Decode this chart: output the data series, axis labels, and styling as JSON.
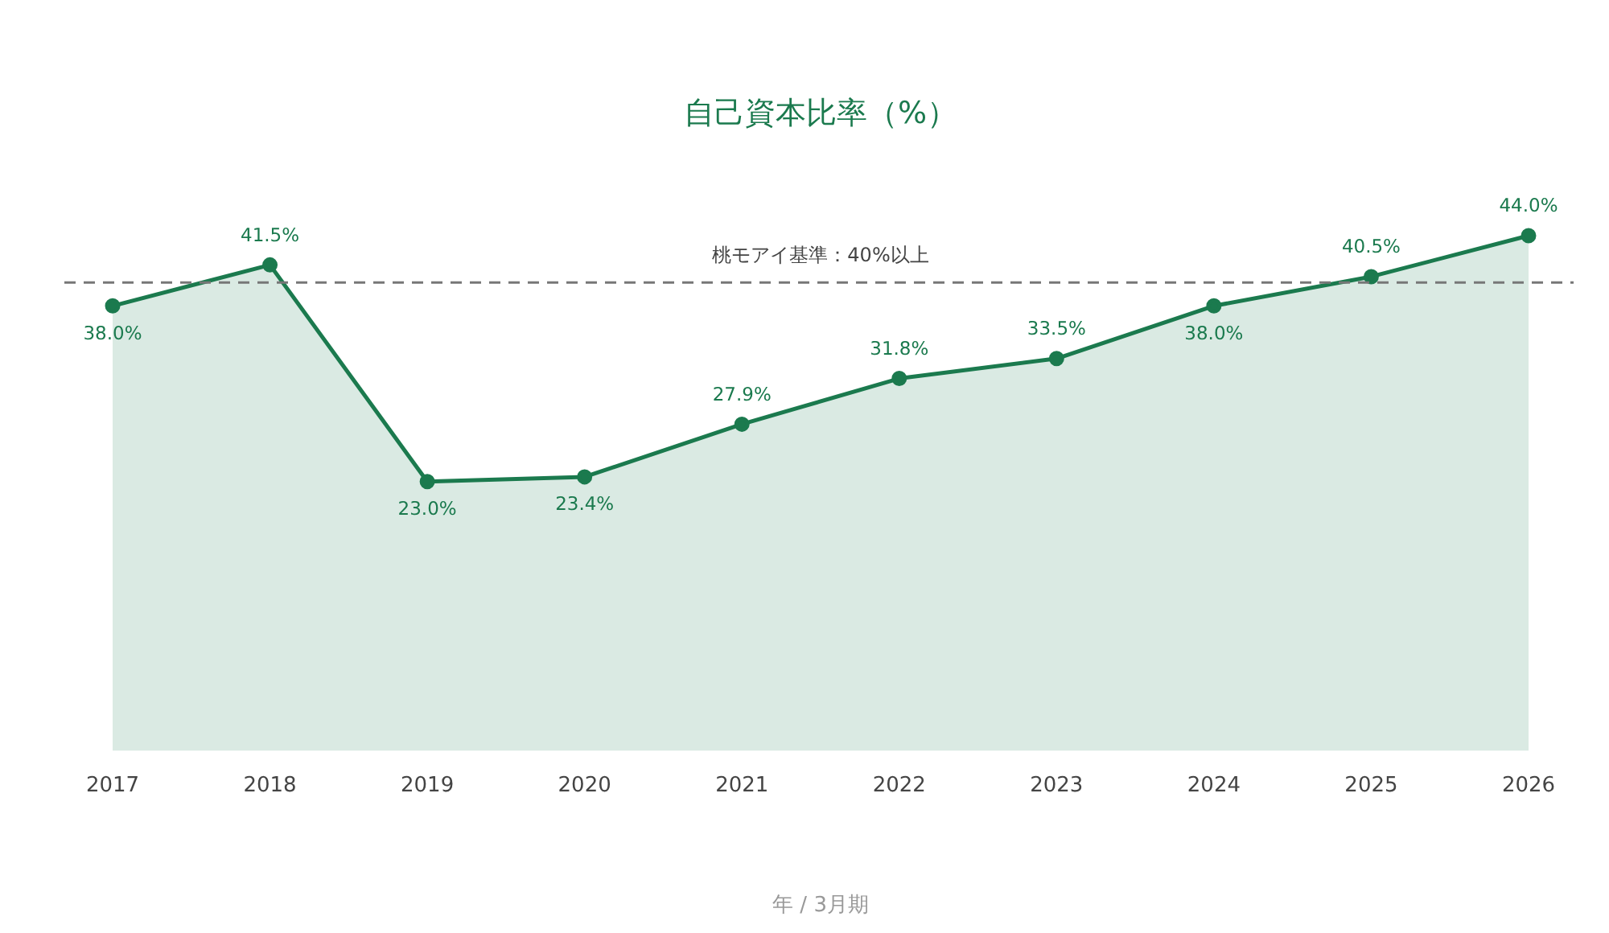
{
  "chart_data": {
    "type": "area",
    "title": "自己資本比率（%）",
    "xlabel": "年 / 3月期",
    "categories": [
      "2017",
      "2018",
      "2019",
      "2020",
      "2021",
      "2022",
      "2023",
      "2024",
      "2025",
      "2026"
    ],
    "values": [
      38.0,
      41.5,
      23.0,
      23.4,
      27.9,
      31.8,
      33.5,
      38.0,
      40.5,
      44.0
    ],
    "value_labels": [
      "38.0%",
      "41.5%",
      "23.0%",
      "23.4%",
      "27.9%",
      "31.8%",
      "33.5%",
      "38.0%",
      "40.5%",
      "44.0%"
    ],
    "color": "#1b7a4e",
    "marker": "circle",
    "line_style": "solid",
    "grid": false,
    "legend": false,
    "ref_lines": [
      {
        "axis": "y",
        "value": 40,
        "label": "桃モアイ基準：40%以上",
        "color": "#777777",
        "line_style": "dashed"
      }
    ]
  }
}
